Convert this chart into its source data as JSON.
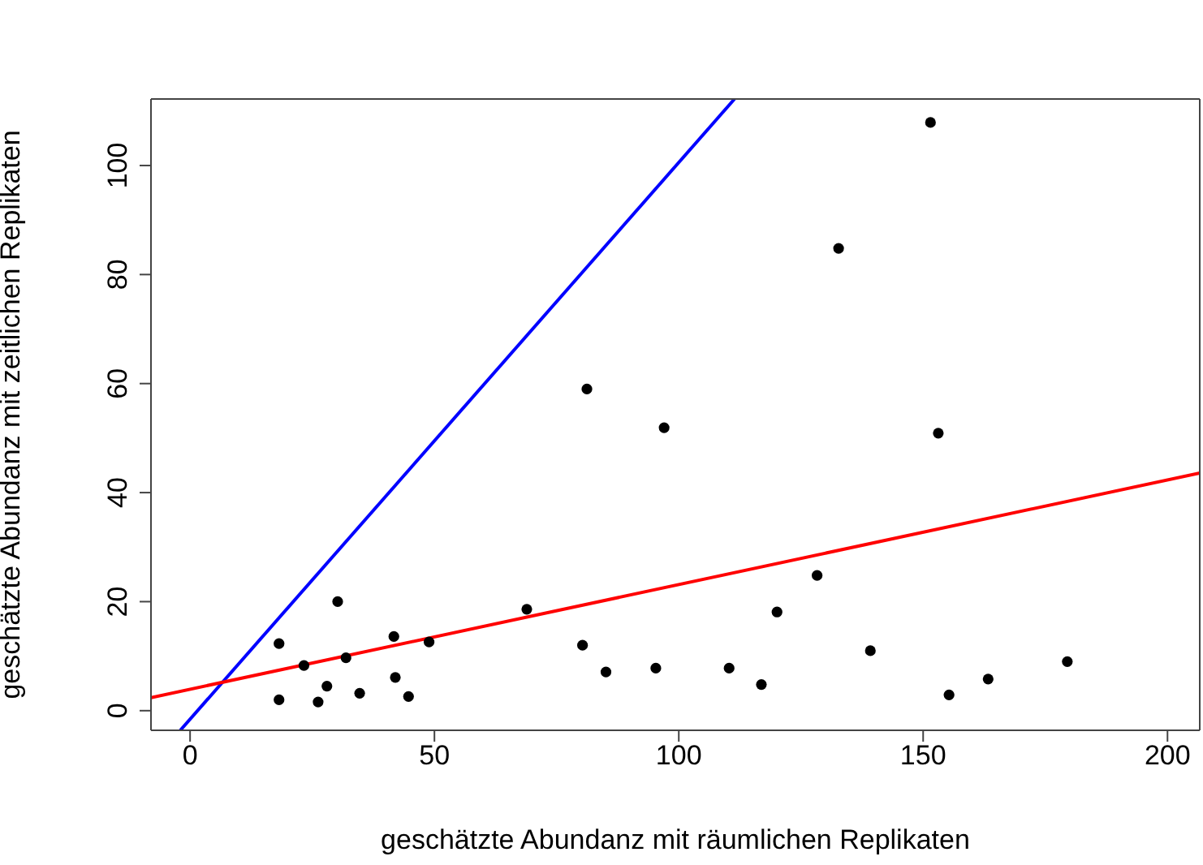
{
  "chart_data": {
    "type": "scatter",
    "xlabel": "geschätzte Abundanz mit räumlichen Replikaten",
    "ylabel": "geschätzte Abundanz mit zeitlichen Replikaten",
    "xlim": [
      -8,
      206.6
    ],
    "ylim": [
      -3.6,
      112.2
    ],
    "xticks": [
      0,
      50,
      100,
      150,
      200
    ],
    "yticks": [
      0,
      20,
      40,
      60,
      80,
      100
    ],
    "series": [
      {
        "marker": "circle",
        "color": "#000000",
        "x": [
          18.2,
          18.2,
          23.3,
          26.2,
          28.0,
          30.2,
          31.9,
          34.7,
          41.7,
          42.0,
          44.7,
          48.9,
          68.9,
          81.2,
          97.0,
          132.7,
          151.5,
          153.1,
          80.3,
          85.1,
          95.3,
          110.3,
          116.9,
          120.1,
          128.3,
          139.2,
          155.3,
          163.3,
          179.5
        ],
        "values": [
          12.3,
          2.0,
          8.3,
          1.6,
          4.5,
          20.0,
          9.7,
          3.2,
          13.6,
          6.1,
          2.6,
          12.6,
          18.6,
          59.0,
          51.9,
          84.8,
          107.9,
          50.9,
          12.0,
          7.1,
          7.8,
          7.8,
          4.8,
          18.1,
          24.8,
          11.0,
          2.9,
          5.8,
          9.0
        ]
      },
      {
        "type": "line",
        "marker": "none",
        "color": "#0000ff",
        "x": [
          -2,
          111.4
        ],
        "values": [
          -3.6,
          112.2
        ]
      },
      {
        "type": "line",
        "marker": "none",
        "color": "#ff0000",
        "x": [
          -8,
          206.6
        ],
        "values": [
          2.4,
          43.6
        ]
      }
    ]
  }
}
